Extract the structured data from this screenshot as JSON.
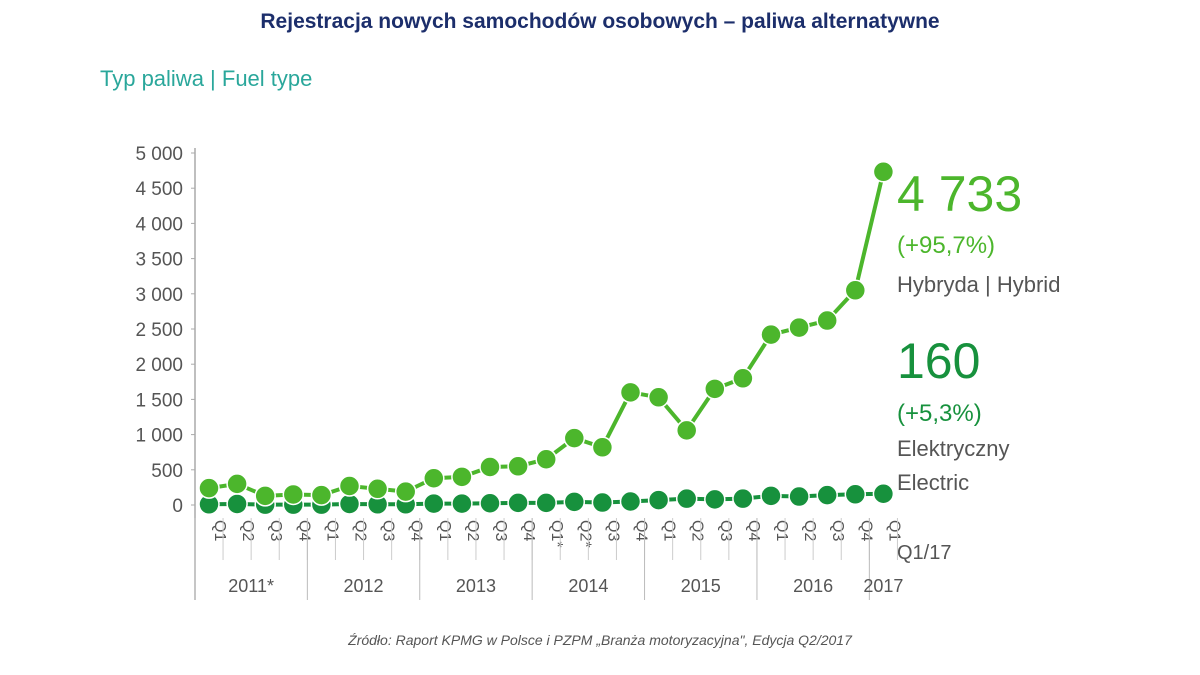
{
  "title": "Rejestracja nowych samochodów osobowych – paliwa alternatywne",
  "subtitle": "Typ paliwa | Fuel type",
  "source": "Źródło: Raport KPMG w Polsce i PZPM „Branża motoryzacyjna\", Edycja Q2/2017",
  "colors": {
    "hybrid": "#4cb62c",
    "electric": "#17913d",
    "axis": "#999999"
  },
  "annotations": {
    "hybrid_value": "4 733",
    "hybrid_change": "(+95,7%)",
    "hybrid_label": "Hybryda | Hybrid",
    "electric_value": "160",
    "electric_change": "(+5,3%)",
    "electric_label1": "Elektryczny",
    "electric_label2": "Electric",
    "period": "Q1/17"
  },
  "chart_data": {
    "type": "line",
    "title": "Rejestracja nowych samochodów osobowych – paliwa alternatywne",
    "ylim": [
      0,
      5000
    ],
    "yticks": [
      "0",
      "500",
      "1 000",
      "1 500",
      "2 000",
      "2 500",
      "3 000",
      "3 500",
      "4 000",
      "4 500",
      "5 000"
    ],
    "quarters": [
      "Q1",
      "Q2",
      "Q3",
      "Q4",
      "Q1",
      "Q2",
      "Q3",
      "Q4",
      "Q1",
      "Q2",
      "Q3",
      "Q4",
      "Q1*",
      "Q2*",
      "Q3",
      "Q4",
      "Q1",
      "Q2",
      "Q3",
      "Q4",
      "Q1",
      "Q2",
      "Q3",
      "Q4",
      "Q1"
    ],
    "years": [
      {
        "label": "2011*",
        "count": 4
      },
      {
        "label": "2012",
        "count": 4
      },
      {
        "label": "2013",
        "count": 4
      },
      {
        "label": "2014",
        "count": 4
      },
      {
        "label": "2015",
        "count": 4
      },
      {
        "label": "2016",
        "count": 4
      },
      {
        "label": "2017",
        "count": 1
      }
    ],
    "series": [
      {
        "name": "Hybryda | Hybrid",
        "values": [
          240,
          300,
          130,
          150,
          140,
          270,
          230,
          190,
          380,
          400,
          540,
          550,
          650,
          950,
          820,
          1600,
          1530,
          1060,
          1650,
          1800,
          2420,
          2520,
          2620,
          3050,
          4733
        ]
      },
      {
        "name": "Elektryczny | Electric",
        "values": [
          10,
          15,
          5,
          5,
          5,
          15,
          10,
          10,
          20,
          20,
          25,
          30,
          30,
          45,
          35,
          50,
          70,
          90,
          80,
          90,
          130,
          120,
          140,
          152,
          160
        ]
      }
    ]
  }
}
